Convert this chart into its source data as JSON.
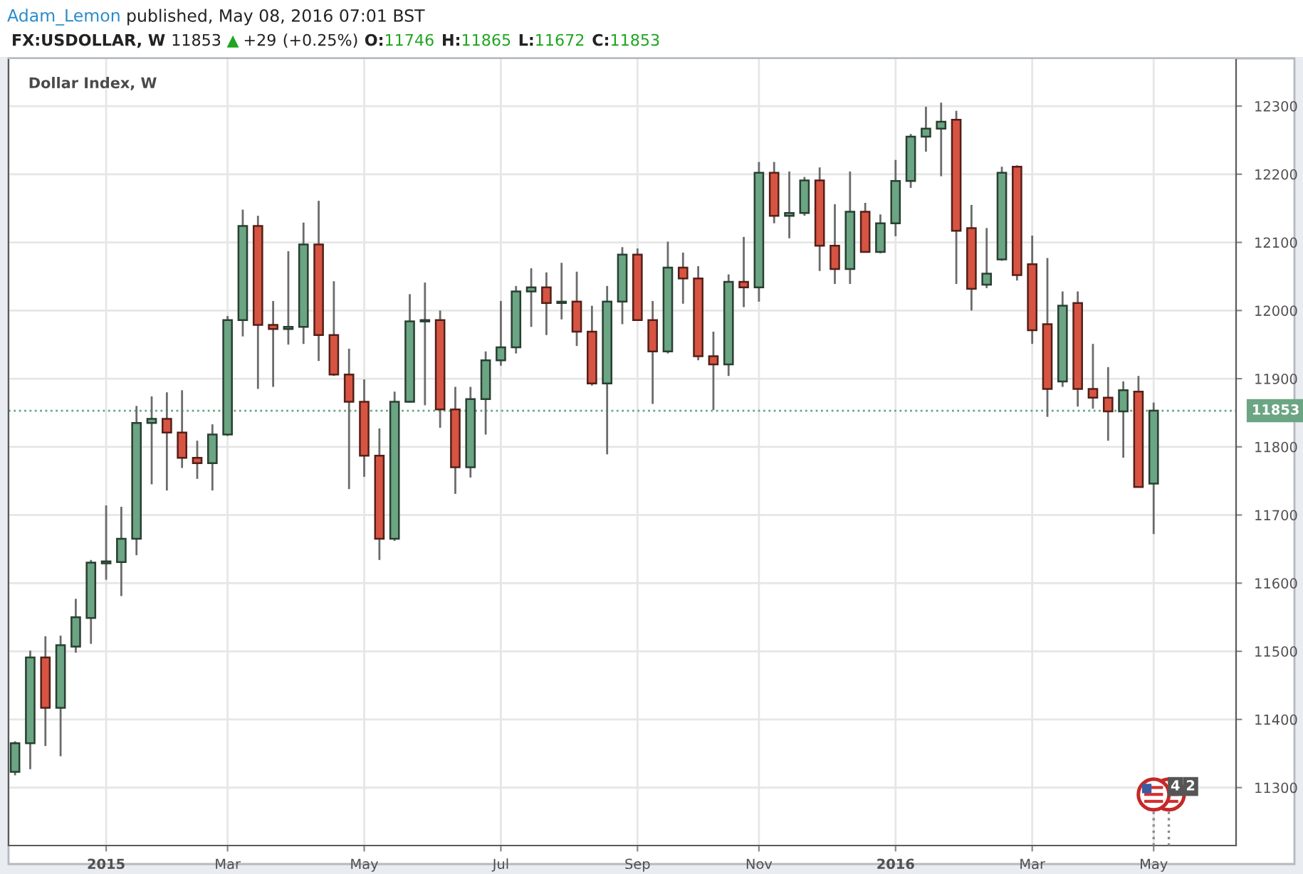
{
  "chart_data": {
    "type": "candlestick",
    "title": "Dollar Index, W",
    "subtitle": "FX:USDOLLAR, W 11853 ▲ +29 (+0.25%) O:11746 H:11865 L:11672 C:11853",
    "annotations": [
      "Adam_Lemon published, May 08, 2016 07:01 BST",
      {
        "text": "4",
        "x": "2016-05-02",
        "y": 11290
      },
      {
        "text": "2",
        "x": "2016-05-09",
        "y": 11290
      }
    ],
    "x": [
      "2014-11-24",
      "2014-12-01",
      "2014-12-08",
      "2014-12-15",
      "2014-12-22",
      "2014-12-29",
      "2015-01-05",
      "2015-01-12",
      "2015-01-19",
      "2015-01-26",
      "2015-02-02",
      "2015-02-09",
      "2015-02-16",
      "2015-02-23",
      "2015-03-02",
      "2015-03-09",
      "2015-03-16",
      "2015-03-23",
      "2015-03-30",
      "2015-04-06",
      "2015-04-13",
      "2015-04-20",
      "2015-04-27",
      "2015-05-04",
      "2015-05-11",
      "2015-05-18",
      "2015-05-25",
      "2015-06-01",
      "2015-06-08",
      "2015-06-15",
      "2015-06-22",
      "2015-06-29",
      "2015-07-06",
      "2015-07-13",
      "2015-07-20",
      "2015-07-27",
      "2015-08-03",
      "2015-08-10",
      "2015-08-17",
      "2015-08-24",
      "2015-08-31",
      "2015-09-07",
      "2015-09-14",
      "2015-09-21",
      "2015-09-28",
      "2015-10-05",
      "2015-10-12",
      "2015-10-19",
      "2015-10-26",
      "2015-11-02",
      "2015-11-09",
      "2015-11-16",
      "2015-11-23",
      "2015-11-30",
      "2015-12-07",
      "2015-12-14",
      "2015-12-21",
      "2015-12-28",
      "2016-01-04",
      "2016-01-11",
      "2016-01-18",
      "2016-01-25",
      "2016-02-01",
      "2016-02-08",
      "2016-02-15",
      "2016-02-22",
      "2016-02-29",
      "2016-03-07",
      "2016-03-14",
      "2016-03-21",
      "2016-03-28",
      "2016-04-04",
      "2016-04-11",
      "2016-04-18",
      "2016-04-25",
      "2016-05-02"
    ],
    "ohlc": [
      [
        11323,
        11368,
        11318,
        11365
      ],
      [
        11365,
        11501,
        11327,
        11491
      ],
      [
        11491,
        11522,
        11361,
        11417
      ],
      [
        11417,
        11523,
        11346,
        11509
      ],
      [
        11507,
        11577,
        11498,
        11550
      ],
      [
        11549,
        11634,
        11511,
        11630
      ],
      [
        11629,
        11714,
        11605,
        11632
      ],
      [
        11631,
        11712,
        11581,
        11665
      ],
      [
        11665,
        11860,
        11641,
        11835
      ],
      [
        11835,
        11874,
        11745,
        11841
      ],
      [
        11841,
        11880,
        11736,
        11821
      ],
      [
        11821,
        11883,
        11769,
        11784
      ],
      [
        11784,
        11809,
        11753,
        11776
      ],
      [
        11776,
        11833,
        11736,
        11818
      ],
      [
        11818,
        11992,
        11816,
        11986
      ],
      [
        11986,
        12148,
        11962,
        12124
      ],
      [
        12124,
        12139,
        11885,
        11979
      ],
      [
        11979,
        12014,
        11888,
        11973
      ],
      [
        11973,
        12087,
        11950,
        11976
      ],
      [
        11976,
        12129,
        11951,
        12097
      ],
      [
        12097,
        12161,
        11926,
        11964
      ],
      [
        11964,
        12043,
        11904,
        11906
      ],
      [
        11906,
        11944,
        11738,
        11866
      ],
      [
        11866,
        11899,
        11756,
        11787
      ],
      [
        11787,
        11827,
        11634,
        11665
      ],
      [
        11665,
        11881,
        11662,
        11866
      ],
      [
        11866,
        12024,
        11865,
        11984
      ],
      [
        11984,
        12041,
        11861,
        11986
      ],
      [
        11986,
        12000,
        11828,
        11855
      ],
      [
        11855,
        11888,
        11731,
        11770
      ],
      [
        11770,
        11888,
        11755,
        11870
      ],
      [
        11870,
        11940,
        11818,
        11927
      ],
      [
        11927,
        12014,
        11919,
        11946
      ],
      [
        11946,
        12036,
        11937,
        12028
      ],
      [
        12028,
        12062,
        11976,
        12034
      ],
      [
        12034,
        12056,
        11964,
        12011
      ],
      [
        12011,
        12070,
        11987,
        12013
      ],
      [
        12013,
        12057,
        11948,
        11969
      ],
      [
        11969,
        12007,
        11890,
        11893
      ],
      [
        11893,
        12036,
        11789,
        12013
      ],
      [
        12013,
        12093,
        11980,
        12082
      ],
      [
        12082,
        12091,
        11985,
        11986
      ],
      [
        11986,
        12014,
        11863,
        11940
      ],
      [
        11940,
        12101,
        11937,
        12063
      ],
      [
        12063,
        12085,
        12010,
        12047
      ],
      [
        12047,
        12065,
        11927,
        11933
      ],
      [
        11933,
        11969,
        11854,
        11921
      ],
      [
        11921,
        12053,
        11904,
        12042
      ],
      [
        12042,
        12108,
        12005,
        12034
      ],
      [
        12034,
        12218,
        12013,
        12202
      ],
      [
        12202,
        12218,
        12128,
        12139
      ],
      [
        12139,
        12204,
        12106,
        12143
      ],
      [
        12143,
        12196,
        12139,
        12191
      ],
      [
        12191,
        12210,
        12058,
        12095
      ],
      [
        12095,
        12156,
        12039,
        12061
      ],
      [
        12061,
        12204,
        12039,
        12145
      ],
      [
        12145,
        12158,
        12085,
        12086
      ],
      [
        12086,
        12141,
        12084,
        12128
      ],
      [
        12128,
        12221,
        12109,
        12190
      ],
      [
        12190,
        12259,
        12180,
        12255
      ],
      [
        12255,
        12299,
        12233,
        12267
      ],
      [
        12267,
        12305,
        12197,
        12277
      ],
      [
        12280,
        12293,
        12039,
        12117
      ],
      [
        12121,
        12155,
        12000,
        12032
      ],
      [
        12038,
        12121,
        12033,
        12054
      ],
      [
        12075,
        12211,
        12073,
        12202
      ],
      [
        12211,
        12213,
        12044,
        12052
      ],
      [
        12068,
        12110,
        11951,
        11971
      ],
      [
        11980,
        12077,
        11844,
        11885
      ],
      [
        11896,
        12028,
        11888,
        12007
      ],
      [
        12011,
        12028,
        11859,
        11885
      ],
      [
        11885,
        11951,
        11856,
        11872
      ],
      [
        11872,
        11917,
        11809,
        11852
      ],
      [
        11852,
        11896,
        11784,
        11883
      ],
      [
        11881,
        11904,
        11741,
        11741
      ],
      [
        11746,
        11865,
        11672,
        11853
      ]
    ],
    "colors": [
      "#6ba583",
      "#6ba583",
      "#d75442",
      "#6ba583",
      "#6ba583",
      "#6ba583",
      "#6ba583",
      "#6ba583",
      "#6ba583",
      "#6ba583",
      "#d75442",
      "#d75442",
      "#d75442",
      "#6ba583",
      "#6ba583",
      "#6ba583",
      "#d75442",
      "#d75442",
      "#6ba583",
      "#6ba583",
      "#d75442",
      "#d75442",
      "#d75442",
      "#d75442",
      "#d75442",
      "#6ba583",
      "#6ba583",
      "#6ba583",
      "#d75442",
      "#d75442",
      "#6ba583",
      "#6ba583",
      "#6ba583",
      "#6ba583",
      "#6ba583",
      "#d75442",
      "#6ba583",
      "#d75442",
      "#d75442",
      "#6ba583",
      "#6ba583",
      "#d75442",
      "#d75442",
      "#6ba583",
      "#d75442",
      "#d75442",
      "#d75442",
      "#6ba583",
      "#d75442",
      "#6ba583",
      "#d75442",
      "#6ba583",
      "#6ba583",
      "#d75442",
      "#d75442",
      "#6ba583",
      "#d75442",
      "#6ba583",
      "#6ba583",
      "#6ba583",
      "#6ba583",
      "#6ba583",
      "#d75442",
      "#d75442",
      "#6ba583",
      "#6ba583",
      "#d75442",
      "#d75442",
      "#d75442",
      "#6ba583",
      "#d75442",
      "#d75442",
      "#d75442",
      "#6ba583",
      "#d75442",
      "#6ba583"
    ],
    "xlim": [
      "2014-11-21",
      "2016-06-09"
    ],
    "xticks": [
      {
        "value": "2015-01-05",
        "label": "2015"
      },
      {
        "value": "2015-03-02",
        "label": "Mar"
      },
      {
        "value": "2015-05-04",
        "label": "May"
      },
      {
        "value": "2015-07-06",
        "label": "Jul"
      },
      {
        "value": "2015-09-07",
        "label": "Sep"
      },
      {
        "value": "2015-11-02",
        "label": "Nov"
      },
      {
        "value": "2016-01-04",
        "label": "2016"
      },
      {
        "value": "2016-03-07",
        "label": "Mar"
      },
      {
        "value": "2016-05-02",
        "label": "May"
      }
    ],
    "ylim": [
      11215,
      12370
    ],
    "yticks": [
      11300,
      11400,
      11500,
      11600,
      11700,
      11800,
      11900,
      12000,
      12100,
      12200,
      12300
    ],
    "ref_lines": [
      {
        "axis": "y",
        "value": 11853,
        "label": "11853",
        "color": "#6ba583",
        "line_style": "dotted"
      }
    ],
    "grid": true
  }
}
